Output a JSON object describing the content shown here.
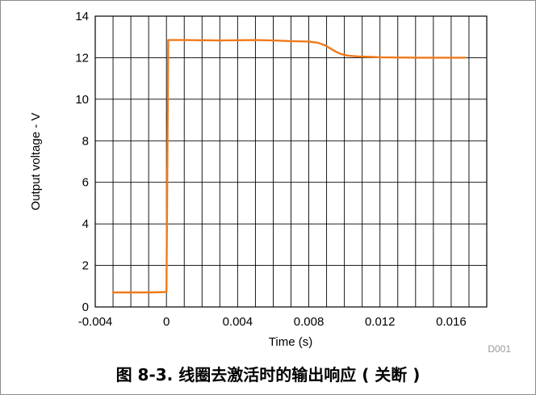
{
  "chart_data": {
    "type": "line",
    "xlabel": "Time (s)",
    "ylabel": "Output voltage - V",
    "xlim": [
      -0.004,
      0.018
    ],
    "ylim": [
      0,
      14
    ],
    "xticks": [
      -0.004,
      0,
      0.004,
      0.008,
      0.012,
      0.016
    ],
    "xtick_labels": [
      "-0.004",
      "0",
      "0.004",
      "0.008",
      "0.012",
      "0.016"
    ],
    "yticks": [
      0,
      2,
      4,
      6,
      8,
      10,
      12,
      14
    ],
    "ytick_labels": [
      "0",
      "2",
      "4",
      "6",
      "8",
      "10",
      "12",
      "14"
    ],
    "grid": true,
    "series_color": "#F07A1A",
    "series": [
      {
        "x": [
          -0.003,
          -0.002,
          -0.001,
          0.0,
          0.0001,
          0.001,
          0.002,
          0.003,
          0.004,
          0.005,
          0.006,
          0.007,
          0.008,
          0.0085,
          0.0089,
          0.0092,
          0.0095,
          0.0098,
          0.0102,
          0.0108,
          0.0115,
          0.012,
          0.013,
          0.014,
          0.015,
          0.016,
          0.0168
        ],
        "y": [
          0.7,
          0.7,
          0.7,
          0.72,
          12.85,
          12.85,
          12.84,
          12.83,
          12.84,
          12.85,
          12.83,
          12.8,
          12.78,
          12.72,
          12.6,
          12.45,
          12.3,
          12.18,
          12.1,
          12.06,
          12.04,
          12.02,
          12.01,
          12.0,
          12.0,
          12.0,
          12.0
        ]
      }
    ],
    "watermark": "D001"
  },
  "caption": "图 8-3. 线圈去激活时的输出响应 ( 关断 )"
}
